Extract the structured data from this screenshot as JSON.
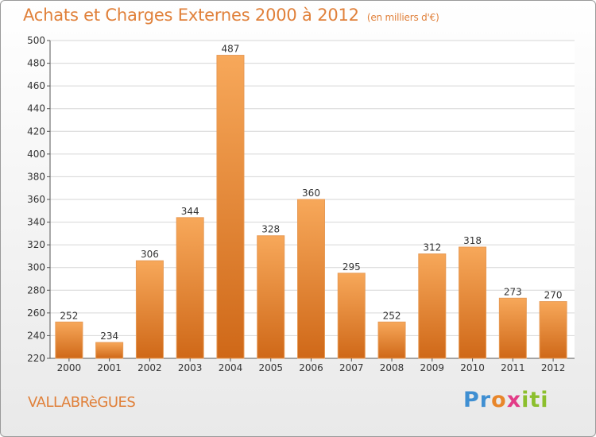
{
  "header": {
    "title": "Achats et Charges Externes 2000 à 2012",
    "subtitle": "(en milliers d'€)"
  },
  "footer": {
    "town": "VALLABRèGUES",
    "brand_letters": [
      "P",
      "r",
      "o",
      "x",
      "i",
      "t",
      "i"
    ],
    "brand_colors": [
      "#3f8fd2",
      "#3f8fd2",
      "#e8862a",
      "#e23c87",
      "#8cbf2d",
      "#8cbf2d",
      "#8cbf2d"
    ]
  },
  "chart_data": {
    "type": "bar",
    "title": "Achats et Charges Externes 2000 à 2012",
    "subtitle": "(en milliers d'€)",
    "categories": [
      "2000",
      "2001",
      "2002",
      "2003",
      "2004",
      "2005",
      "2006",
      "2007",
      "2008",
      "2009",
      "2010",
      "2011",
      "2012"
    ],
    "values": [
      252,
      234,
      306,
      344,
      487,
      328,
      360,
      295,
      252,
      312,
      318,
      273,
      270
    ],
    "ylim": [
      220,
      500
    ],
    "yticks": [
      220,
      240,
      260,
      280,
      300,
      320,
      340,
      360,
      380,
      400,
      420,
      440,
      460,
      480,
      500
    ],
    "grid": true,
    "bar_color_top": "#f7a85a",
    "bar_color_bottom": "#cf6818"
  }
}
